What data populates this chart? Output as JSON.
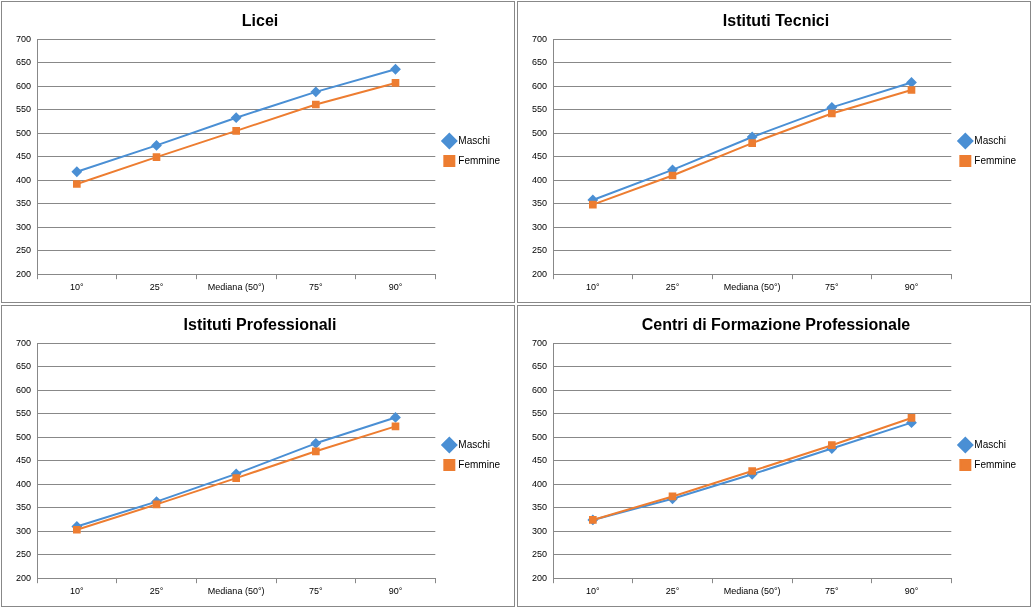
{
  "chart_data": [
    {
      "type": "line",
      "title": "Licei",
      "categories": [
        "10°",
        "25°",
        "Mediana (50°)",
        "75°",
        "90°"
      ],
      "ylim": [
        200,
        700
      ],
      "yticks": [
        200,
        250,
        300,
        350,
        400,
        450,
        500,
        550,
        600,
        650,
        700
      ],
      "grid": "y",
      "legend": "right",
      "series": [
        {
          "name": "Maschi",
          "color": "#4a8fd4",
          "marker": "diamond",
          "values": [
            418,
            474,
            533,
            588,
            636
          ]
        },
        {
          "name": "Femmine",
          "color": "#ed7d31",
          "marker": "square",
          "values": [
            392,
            449,
            505,
            561,
            607
          ]
        }
      ]
    },
    {
      "type": "line",
      "title": "Istituti Tecnici",
      "categories": [
        "10°",
        "25°",
        "Mediana (50°)",
        "75°",
        "90°"
      ],
      "ylim": [
        200,
        700
      ],
      "yticks": [
        200,
        250,
        300,
        350,
        400,
        450,
        500,
        550,
        600,
        650,
        700
      ],
      "grid": "y",
      "legend": "right",
      "series": [
        {
          "name": "Maschi",
          "color": "#4a8fd4",
          "marker": "diamond",
          "values": [
            358,
            422,
            492,
            555,
            608
          ]
        },
        {
          "name": "Femmine",
          "color": "#ed7d31",
          "marker": "square",
          "values": [
            348,
            410,
            479,
            542,
            592
          ]
        }
      ]
    },
    {
      "type": "line",
      "title": "Istituti Professionali",
      "categories": [
        "10°",
        "25°",
        "Mediana (50°)",
        "75°",
        "90°"
      ],
      "ylim": [
        200,
        700
      ],
      "yticks": [
        200,
        250,
        300,
        350,
        400,
        450,
        500,
        550,
        600,
        650,
        700
      ],
      "grid": "y",
      "legend": "right",
      "series": [
        {
          "name": "Maschi",
          "color": "#4a8fd4",
          "marker": "diamond",
          "values": [
            310,
            363,
            422,
            487,
            542
          ]
        },
        {
          "name": "Femmine",
          "color": "#ed7d31",
          "marker": "square",
          "values": [
            303,
            357,
            413,
            470,
            523
          ]
        }
      ]
    },
    {
      "type": "line",
      "title": "Centri di Formazione Professionale",
      "categories": [
        "10°",
        "25°",
        "Mediana (50°)",
        "75°",
        "90°"
      ],
      "ylim": [
        200,
        700
      ],
      "yticks": [
        200,
        250,
        300,
        350,
        400,
        450,
        500,
        550,
        600,
        650,
        700
      ],
      "grid": "y",
      "legend": "right",
      "series": [
        {
          "name": "Maschi",
          "color": "#4a8fd4",
          "marker": "diamond",
          "values": [
            324,
            369,
            421,
            476,
            531
          ]
        },
        {
          "name": "Femmine",
          "color": "#ed7d31",
          "marker": "square",
          "values": [
            324,
            374,
            428,
            483,
            541
          ]
        }
      ]
    }
  ]
}
